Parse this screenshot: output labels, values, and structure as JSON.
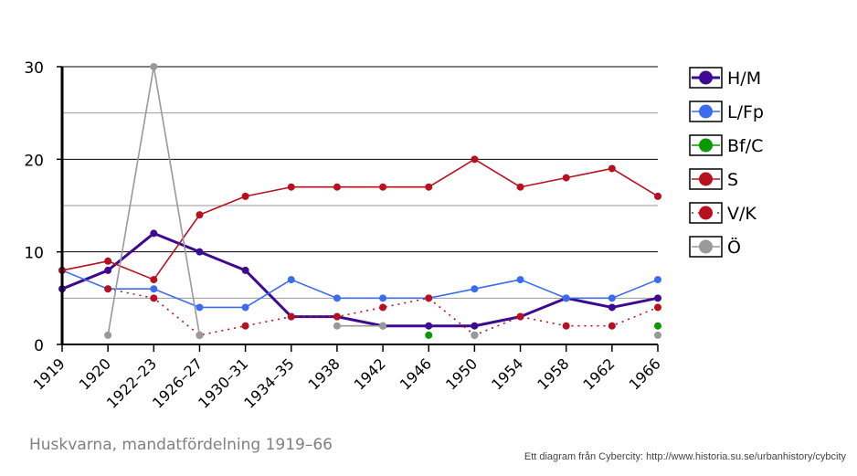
{
  "chart_data": {
    "type": "line",
    "title": "",
    "xlabel": "",
    "ylabel": "",
    "ylim": [
      0,
      30
    ],
    "yticks": [
      0,
      10,
      20,
      30
    ],
    "grid": true,
    "legend_position": "right",
    "categories": [
      "1919",
      "1920",
      "1922–23",
      "1926–27",
      "1930–31",
      "1934–35",
      "1938",
      "1942",
      "1946",
      "1950",
      "1954",
      "1958",
      "1962",
      "1966"
    ],
    "series": [
      {
        "name": "H/M",
        "color": "#3d0a91",
        "style": "solid-thick",
        "values": [
          6,
          8,
          12,
          10,
          8,
          3,
          3,
          2,
          2,
          2,
          3,
          5,
          4,
          5
        ]
      },
      {
        "name": "L/Fp",
        "color": "#3b6cf0",
        "style": "solid",
        "values": [
          8,
          6,
          6,
          4,
          4,
          7,
          5,
          5,
          5,
          6,
          7,
          5,
          5,
          7
        ]
      },
      {
        "name": "Bf/C",
        "color": "#0a9900",
        "style": "solid",
        "values": [
          null,
          null,
          null,
          null,
          null,
          null,
          null,
          null,
          1,
          null,
          null,
          null,
          null,
          2
        ]
      },
      {
        "name": "S",
        "color": "#b8101e",
        "style": "solid",
        "values": [
          8,
          9,
          7,
          14,
          16,
          17,
          17,
          17,
          17,
          20,
          17,
          18,
          19,
          16
        ]
      },
      {
        "name": "V/K",
        "color": "#b8101e",
        "style": "dotted",
        "values": [
          null,
          6,
          5,
          1,
          2,
          3,
          3,
          4,
          5,
          1,
          3,
          2,
          2,
          4
        ]
      },
      {
        "name": "Ö",
        "color": "#999999",
        "style": "solid",
        "values": [
          null,
          1,
          30,
          1,
          null,
          null,
          2,
          2,
          null,
          1,
          null,
          null,
          null,
          1
        ]
      }
    ]
  },
  "caption": "Huskvarna, mandatfördelning 1919–66",
  "credit": "Ett diagram från Cybercity: http://www.historia.su.se/urbanhistory/cybcity"
}
